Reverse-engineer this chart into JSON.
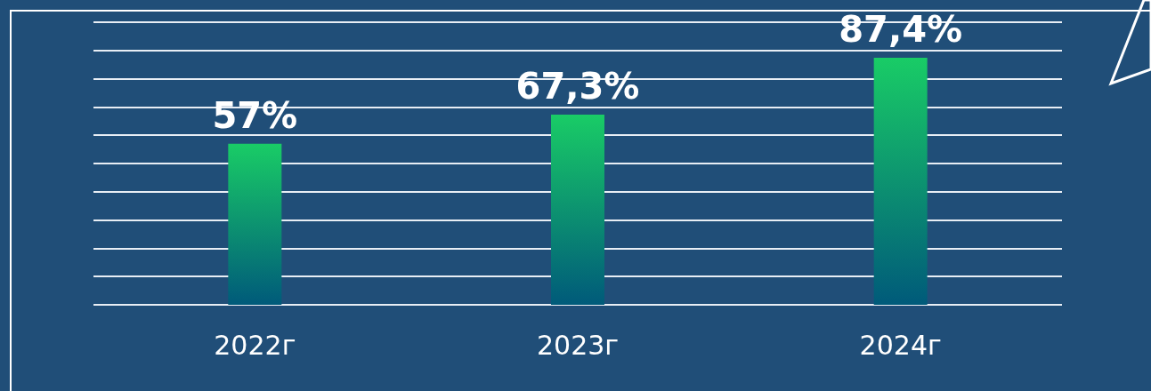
{
  "chart_data": {
    "type": "bar",
    "categories": [
      "2022г",
      "2023г",
      "2024г"
    ],
    "values": [
      57,
      67.3,
      87.4
    ],
    "value_labels": [
      "57%",
      "67,3%",
      "87,4%"
    ],
    "color": "#19cc66",
    "ylim": [
      0,
      100
    ],
    "yticks": [
      {
        "value": 0,
        "label": null
      },
      {
        "value": 10,
        "label": null
      },
      {
        "value": 20,
        "label": null
      },
      {
        "value": 30,
        "label": null
      },
      {
        "value": 40,
        "label": null
      },
      {
        "value": 50,
        "label": null
      },
      {
        "value": 60,
        "label": null
      },
      {
        "value": 70,
        "label": null
      },
      {
        "value": 80,
        "label": null
      },
      {
        "value": 90,
        "label": null
      },
      {
        "value": 100,
        "label": null
      }
    ],
    "tick_labels": "x",
    "grid": "y"
  }
}
